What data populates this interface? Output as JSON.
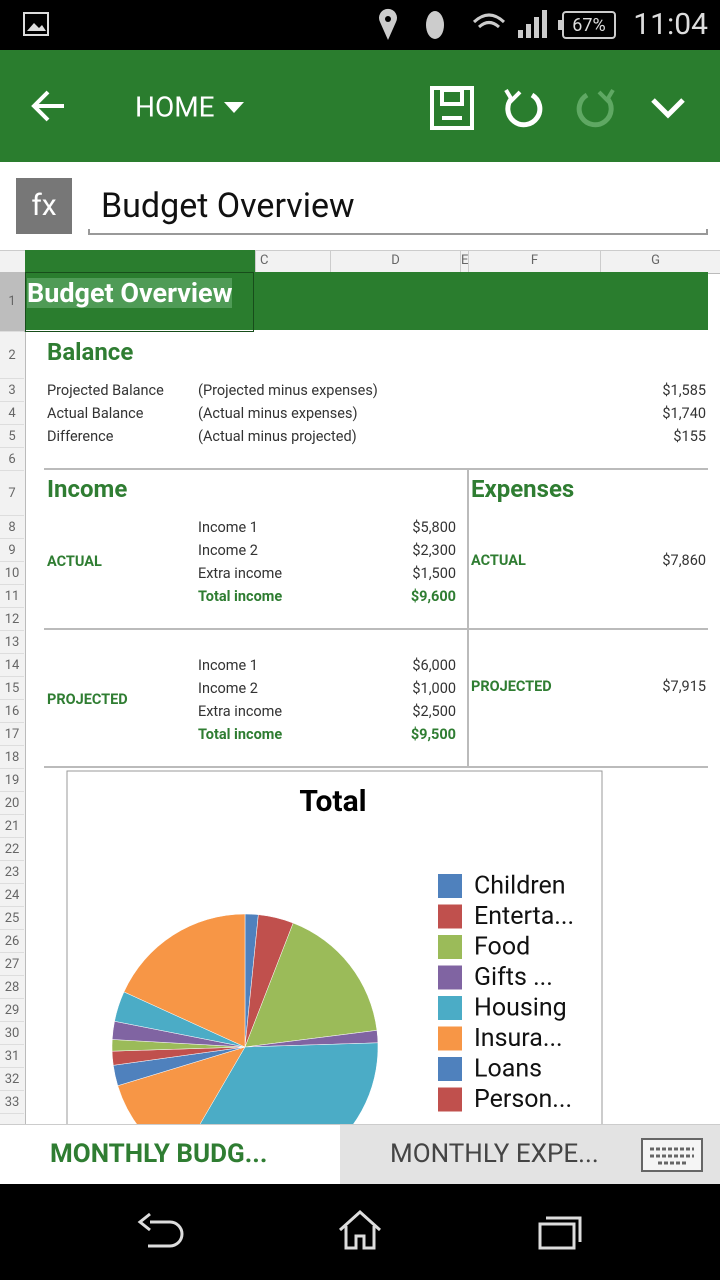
{
  "status_bar": {
    "battery": "67%",
    "time": "11:04"
  },
  "toolbar": {
    "menu": "HOME"
  },
  "formula_bar": {
    "fx": "fx",
    "content": "Budget Overview"
  },
  "sheet": {
    "columns": [
      "C",
      "D",
      "E",
      "F",
      "G"
    ],
    "row_numbers": [
      1,
      2,
      3,
      4,
      5,
      6,
      7,
      8,
      9,
      10,
      11,
      12,
      13,
      14,
      15,
      16,
      17,
      18,
      19,
      20,
      21,
      22,
      23,
      24,
      25,
      26,
      27,
      28,
      29,
      30,
      31,
      32,
      33
    ],
    "title": "Budget Overview",
    "balance": {
      "heading": "Balance",
      "rows": [
        {
          "label": "Projected Balance",
          "note": "(Projected  minus expenses)",
          "value": "$1,585"
        },
        {
          "label": "Actual Balance",
          "note": "(Actual  minus expenses)",
          "value": "$1,740"
        },
        {
          "label": "Difference",
          "note": "(Actual minus projected)",
          "value": "$155"
        }
      ]
    },
    "income": {
      "heading": "Income",
      "actual": {
        "label": "ACTUAL",
        "items": [
          {
            "label": "Income 1",
            "value": "$5,800"
          },
          {
            "label": "Income 2",
            "value": "$2,300"
          },
          {
            "label": "Extra income",
            "value": "$1,500"
          }
        ],
        "total": {
          "label": "Total income",
          "value": "$9,600"
        }
      },
      "projected": {
        "label": "PROJECTED",
        "items": [
          {
            "label": "Income 1",
            "value": "$6,000"
          },
          {
            "label": "Income 2",
            "value": "$1,000"
          },
          {
            "label": "Extra income",
            "value": "$2,500"
          }
        ],
        "total": {
          "label": "Total income",
          "value": "$9,500"
        }
      }
    },
    "expenses": {
      "heading": "Expenses",
      "actual": {
        "label": "ACTUAL",
        "value": "$7,860"
      },
      "projected": {
        "label": "PROJECTED",
        "value": "$7,915"
      }
    }
  },
  "chart_data": {
    "type": "pie",
    "title": "Total",
    "categories": [
      "Children",
      "Enterta...",
      "Food",
      "Gifts ...",
      "Housing",
      "Insura...",
      "Loans",
      "Person...",
      null,
      null,
      null,
      null
    ],
    "values": [
      1.6,
      4.3,
      17.1,
      1.5,
      33.9,
      11.9,
      2.5,
      1.7,
      1.4,
      2.2,
      3.7,
      18.2
    ],
    "colors": [
      "#4f81bd",
      "#c0504d",
      "#9bbb59",
      "#8064a2",
      "#4bacc6",
      "#f79646",
      "#4f81bd",
      "#c0504d",
      "#9bbb59",
      "#8064a2",
      "#4bacc6",
      "#f79646"
    ]
  },
  "tabs": [
    "MONTHLY BUDG...",
    "MONTHLY EXPE..."
  ]
}
